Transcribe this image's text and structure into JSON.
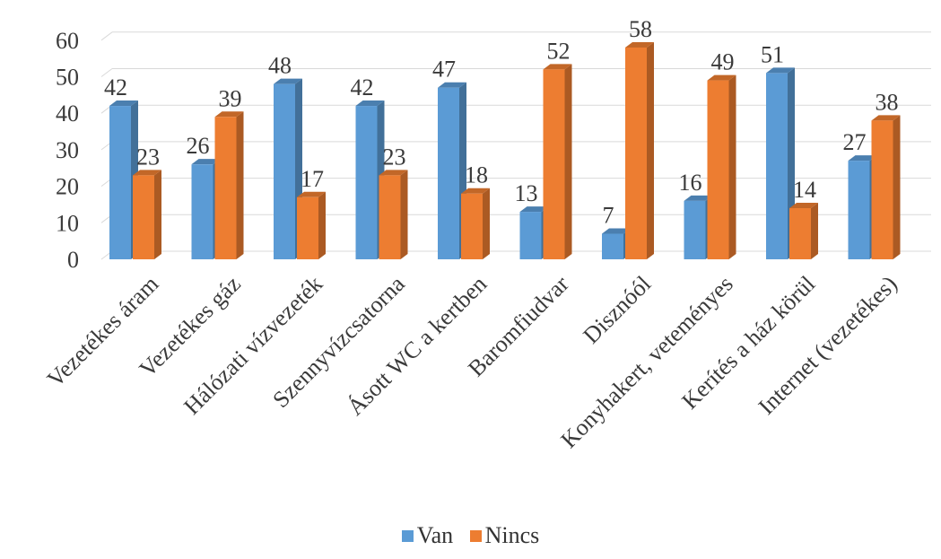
{
  "chart_data": {
    "type": "bar",
    "title": "",
    "xlabel": "",
    "ylabel": "",
    "ylim": [
      0,
      60
    ],
    "yticks": [
      0,
      10,
      20,
      30,
      40,
      50,
      60
    ],
    "grid": true,
    "legend_position": "bottom",
    "style": "3d-clustered-column",
    "categories": [
      "Vezetékes áram",
      "Vezetékes gáz",
      "Hálózati vízvezeték",
      "Szennyvízcsatorna",
      "Ásott WC a kertben",
      "Baromfiudvar",
      "Disznóól",
      "Konyhakert, veteményes",
      "Kerítés a ház körül",
      "Internet (vezetékes)"
    ],
    "series": [
      {
        "name": "Van",
        "color": "#5B9BD5",
        "values": [
          42,
          26,
          48,
          42,
          47,
          13,
          7,
          16,
          51,
          27
        ]
      },
      {
        "name": "Nincs",
        "color": "#ED7D31",
        "values": [
          23,
          39,
          17,
          23,
          18,
          52,
          58,
          49,
          14,
          38
        ]
      }
    ]
  }
}
